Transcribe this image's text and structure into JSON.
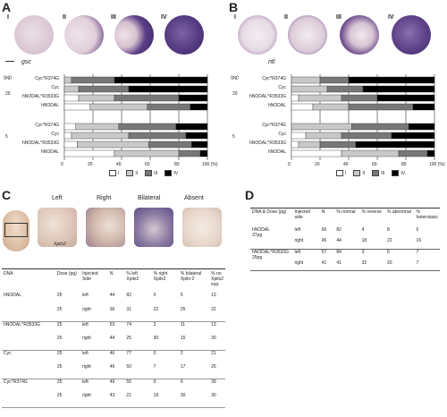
{
  "panelA": {
    "label": "A",
    "stages": [
      "I",
      "II",
      "III",
      "IV"
    ],
    "gene": "gsc",
    "dose_unit": "(pg)",
    "dose_high": "20",
    "dose_low": "5",
    "bars_high": [
      "Cyc^R374G",
      "Cyc",
      "hNODAL^R3533G",
      "hNODAL"
    ],
    "bars_low": [
      "Cyc^R374G",
      "Cyc",
      "hNODAL^R3533G",
      "hNODAL"
    ],
    "ticks": [
      "0",
      "20",
      "40",
      "60",
      "80",
      "100 (%)"
    ],
    "legend": [
      "I",
      "II",
      "III",
      "IV"
    ]
  },
  "panelB": {
    "label": "B",
    "stages": [
      "I",
      "II",
      "III",
      "IV"
    ],
    "gene": "ntl",
    "dose_unit": "(pg)",
    "dose_high": "20",
    "dose_low": "5",
    "bars_high": [
      "Cyc^R374G",
      "Cyc",
      "hNODAL^R3533G",
      "hNODAL"
    ],
    "bars_low": [
      "Cyc^R374G",
      "Cyc",
      "hNODAL^R3533G",
      "hNODAL"
    ],
    "ticks": [
      "0",
      "20",
      "40",
      "60",
      "80",
      "100 (%)"
    ],
    "legend": [
      "I",
      "II",
      "III",
      "IV"
    ]
  },
  "panelC": {
    "label": "C",
    "photo_labels": [
      "Left",
      "Right",
      "Bilateral",
      "Absent"
    ],
    "gene": "Xpitx2",
    "headers": [
      "DNA",
      "Dose (pg)",
      "Injected Side",
      "N",
      "% left Xpitx2",
      "% right Xpitx2",
      "% bilateral Xpitx-2",
      "% no Xpitx2 exp."
    ],
    "rows": [
      {
        "dna": "hNODAL",
        "dose": "25",
        "side": "left",
        "n": "44",
        "left": "82",
        "right": "0",
        "bi": "5",
        "no": "13"
      },
      {
        "dna": "",
        "dose": "25",
        "side": "right",
        "n": "36",
        "left": "31",
        "right": "22",
        "bi": "25",
        "no": "22"
      },
      {
        "dna": "hNODAL^R3533G",
        "dose": "25",
        "side": "left",
        "n": "53",
        "left": "74",
        "right": "2",
        "bi": "11",
        "no": "13"
      },
      {
        "dna": "",
        "dose": "25",
        "side": "right",
        "n": "44",
        "left": "25",
        "right": "30",
        "bi": "15",
        "no": "30"
      },
      {
        "dna": "Cyc",
        "dose": "25",
        "side": "left",
        "n": "46",
        "left": "77",
        "right": "0",
        "bi": "2",
        "no": "21"
      },
      {
        "dna": "",
        "dose": "25",
        "side": "right",
        "n": "46",
        "left": "50",
        "right": "7",
        "bi": "17",
        "no": "26"
      },
      {
        "dna": "Cyc^R374G",
        "dose": "25",
        "side": "left",
        "n": "49",
        "left": "55",
        "right": "0",
        "bi": "6",
        "no": "39"
      },
      {
        "dna": "",
        "dose": "25",
        "side": "right",
        "n": "43",
        "left": "21",
        "right": "19",
        "bi": "30",
        "no": "30"
      }
    ]
  },
  "panelD": {
    "label": "D",
    "headers": [
      "DNA & Dose (pg)",
      "Injected side",
      "N",
      "% normal",
      "% reverse",
      "% abnormal",
      "% heterotaxic"
    ],
    "rows": [
      {
        "dna": "hNODAL",
        "dose": "37pg",
        "side": "left",
        "n": "60",
        "normal": "82",
        "reverse": "4",
        "abnormal": "8",
        "hetero": "6"
      },
      {
        "dna": "",
        "dose": "",
        "side": "right",
        "n": "45",
        "normal": "44",
        "reverse": "18",
        "abnormal": "22",
        "hetero": "16"
      },
      {
        "dna": "hNODAL^R3533G",
        "dose": "25pg",
        "side": "left",
        "n": "57",
        "normal": "84",
        "reverse": "3",
        "abnormal": "6",
        "hetero": "7"
      },
      {
        "dna": "",
        "dose": "",
        "side": "right",
        "n": "41",
        "normal": "41",
        "reverse": "32",
        "abnormal": "20",
        "hetero": "7"
      }
    ]
  },
  "chart_data": [
    {
      "type": "bar",
      "orientation": "horizontal-stacked",
      "categories": [
        "20 pg Cyc^R374G",
        "20 pg Cyc",
        "20 pg hNODAL^R3533G",
        "20 pg hNODAL",
        "5 pg Cyc^R374G",
        "5 pg Cyc",
        "5 pg hNODAL^R3533G",
        "5 pg hNODAL"
      ],
      "series": [
        {
          "name": "I",
          "values": [
            0,
            0,
            10,
            18,
            8,
            5,
            9,
            35
          ]
        },
        {
          "name": "II",
          "values": [
            5,
            10,
            25,
            40,
            30,
            40,
            50,
            45
          ]
        },
        {
          "name": "III",
          "values": [
            30,
            35,
            45,
            30,
            40,
            40,
            30,
            15
          ]
        },
        {
          "name": "IV",
          "values": [
            65,
            55,
            20,
            12,
            22,
            15,
            11,
            5
          ]
        }
      ],
      "xlim": [
        0,
        100
      ],
      "colors": [
        "#ffffff",
        "#c8c8c8",
        "#777777",
        "#000000"
      ],
      "legend_position": "bottom"
    },
    {
      "type": "bar",
      "orientation": "horizontal-stacked",
      "categories": [
        "20 pg Cyc^R374G",
        "20 pg Cyc",
        "20 pg hNODAL^R3533G",
        "20 pg hNODAL",
        "5 pg Cyc^R374G",
        "5 pg Cyc",
        "5 pg hNODAL^R3533G",
        "5 pg hNODAL"
      ],
      "series": [
        {
          "name": "I",
          "values": [
            0,
            0,
            5,
            15,
            0,
            10,
            5,
            35
          ]
        },
        {
          "name": "II",
          "values": [
            20,
            25,
            30,
            25,
            42,
            25,
            15,
            40
          ]
        },
        {
          "name": "III",
          "values": [
            20,
            25,
            25,
            45,
            40,
            35,
            25,
            20
          ]
        },
        {
          "name": "IV",
          "values": [
            60,
            50,
            40,
            15,
            18,
            30,
            55,
            5
          ]
        }
      ],
      "xlim": [
        0,
        100
      ],
      "colors": [
        "#ffffff",
        "#c8c8c8",
        "#777777",
        "#000000"
      ],
      "legend_position": "bottom"
    }
  ]
}
